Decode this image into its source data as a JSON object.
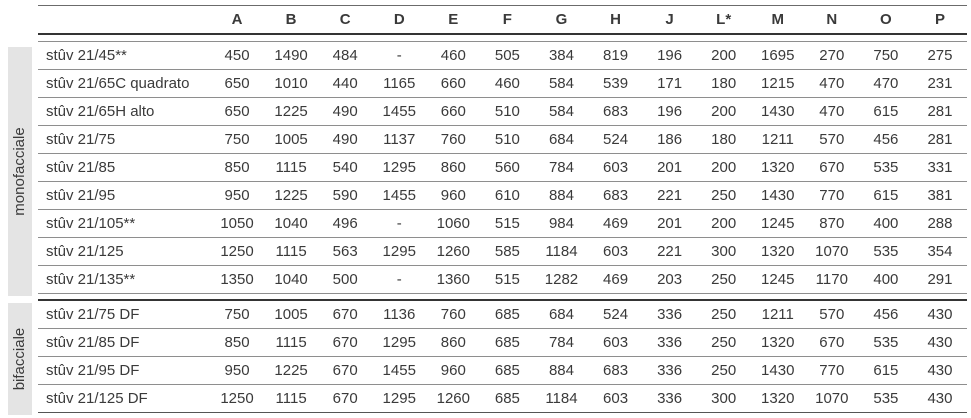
{
  "table": {
    "columns": [
      "A",
      "B",
      "C",
      "D",
      "E",
      "F",
      "G",
      "H",
      "J",
      "L*",
      "M",
      "N",
      "O",
      "P"
    ],
    "groups": [
      {
        "label": "monofacciale",
        "rows": [
          {
            "model": "stûv 21/45**",
            "values": [
              "450",
              "1490",
              "484",
              "-",
              "460",
              "505",
              "384",
              "819",
              "196",
              "200",
              "1695",
              "270",
              "750",
              "275"
            ]
          },
          {
            "model": "stûv 21/65C quadrato",
            "values": [
              "650",
              "1010",
              "440",
              "1165",
              "660",
              "460",
              "584",
              "539",
              "171",
              "180",
              "1215",
              "470",
              "470",
              "231"
            ]
          },
          {
            "model": "stûv 21/65H alto",
            "values": [
              "650",
              "1225",
              "490",
              "1455",
              "660",
              "510",
              "584",
              "683",
              "196",
              "200",
              "1430",
              "470",
              "615",
              "281"
            ]
          },
          {
            "model": "stûv 21/75",
            "values": [
              "750",
              "1005",
              "490",
              "1137",
              "760",
              "510",
              "684",
              "524",
              "186",
              "180",
              "1211",
              "570",
              "456",
              "281"
            ]
          },
          {
            "model": "stûv 21/85",
            "values": [
              "850",
              "1115",
              "540",
              "1295",
              "860",
              "560",
              "784",
              "603",
              "201",
              "200",
              "1320",
              "670",
              "535",
              "331"
            ]
          },
          {
            "model": "stûv 21/95",
            "values": [
              "950",
              "1225",
              "590",
              "1455",
              "960",
              "610",
              "884",
              "683",
              "221",
              "250",
              "1430",
              "770",
              "615",
              "381"
            ]
          },
          {
            "model": "stûv 21/105**",
            "values": [
              "1050",
              "1040",
              "496",
              "-",
              "1060",
              "515",
              "984",
              "469",
              "201",
              "200",
              "1245",
              "870",
              "400",
              "288"
            ]
          },
          {
            "model": "stûv 21/125",
            "values": [
              "1250",
              "1115",
              "563",
              "1295",
              "1260",
              "585",
              "1184",
              "603",
              "221",
              "300",
              "1320",
              "1070",
              "535",
              "354"
            ]
          },
          {
            "model": "stûv 21/135**",
            "values": [
              "1350",
              "1040",
              "500",
              "-",
              "1360",
              "515",
              "1282",
              "469",
              "203",
              "250",
              "1245",
              "1170",
              "400",
              "291"
            ]
          }
        ]
      },
      {
        "label": "bifacciale",
        "rows": [
          {
            "model": "stûv 21/75 DF",
            "values": [
              "750",
              "1005",
              "670",
              "1136",
              "760",
              "685",
              "684",
              "524",
              "336",
              "250",
              "1211",
              "570",
              "456",
              "430"
            ]
          },
          {
            "model": "stûv 21/85 DF",
            "values": [
              "850",
              "1115",
              "670",
              "1295",
              "860",
              "685",
              "784",
              "603",
              "336",
              "250",
              "1320",
              "670",
              "535",
              "430"
            ]
          },
          {
            "model": "stûv 21/95 DF",
            "values": [
              "950",
              "1225",
              "670",
              "1455",
              "960",
              "685",
              "884",
              "683",
              "336",
              "250",
              "1430",
              "770",
              "615",
              "430"
            ]
          },
          {
            "model": "stûv 21/125 DF",
            "values": [
              "1250",
              "1115",
              "670",
              "1295",
              "1260",
              "685",
              "1184",
              "603",
              "336",
              "300",
              "1320",
              "1070",
              "535",
              "430"
            ]
          }
        ]
      }
    ]
  },
  "colors": {
    "text": "#3a3a3a",
    "thin_rule": "#8e8e8e",
    "thick_rule": "#343434",
    "group_bar_bg": "#e4e4e4"
  }
}
